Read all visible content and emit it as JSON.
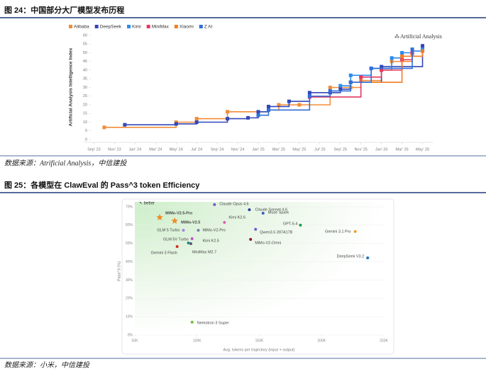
{
  "chart_data": [
    {
      "type": "line",
      "step": "post",
      "title": "图 24：中国部分大厂模型发布历程",
      "source": "数据来源：Atrificial Analysis，中信建投",
      "y_label": "Artificial Analysis Intelligence Index",
      "annotation": "Artificial Analysis",
      "xlim": [
        "2023-08",
        "2026-06"
      ],
      "xticks": [
        {
          "value": "2023-09",
          "label": "Sep' 23"
        },
        {
          "value": "2023-11",
          "label": "Nov' 23"
        },
        {
          "value": "2024-01",
          "label": "Jan' 24"
        },
        {
          "value": "2024-03",
          "label": "Mar' 24"
        },
        {
          "value": "2024-05",
          "label": "May' 24"
        },
        {
          "value": "2024-07",
          "label": "Jul' 24"
        },
        {
          "value": "2024-09",
          "label": "Sep' 24"
        },
        {
          "value": "2024-11",
          "label": "Nov' 24"
        },
        {
          "value": "2025-01",
          "label": "Jan' 25"
        },
        {
          "value": "2025-03",
          "label": "Mar' 25"
        },
        {
          "value": "2025-05",
          "label": "May' 25"
        },
        {
          "value": "2025-07",
          "label": "Jul' 25"
        },
        {
          "value": "2025-09",
          "label": "Sep' 25"
        },
        {
          "value": "2025-11",
          "label": "Nov' 25"
        },
        {
          "value": "2026-01",
          "label": "Jan' 26"
        },
        {
          "value": "2026-03",
          "label": "Mar' 26"
        },
        {
          "value": "2026-05",
          "label": "May' 26"
        }
      ],
      "ylim": [
        0,
        60
      ],
      "yticks": [
        0,
        5,
        10,
        15,
        20,
        25,
        30,
        35,
        40,
        45,
        50,
        55,
        60
      ],
      "series": [
        {
          "name": "Alibaba",
          "color": "#f28c38",
          "x": [
            "2023-10",
            "2024-05",
            "2024-07",
            "2024-10",
            "2025-02",
            "2025-03",
            "2025-05",
            "2025-08",
            "2025-10",
            "2025-11",
            "2026-01",
            "2026-02",
            "2026-04"
          ],
          "values": [
            7,
            10,
            12,
            16,
            17,
            20,
            20,
            30,
            30,
            34,
            40,
            45,
            49
          ]
        },
        {
          "name": "DeepSeek",
          "color": "#3347b8",
          "x": [
            "2023-12",
            "2024-05",
            "2024-07",
            "2024-10",
            "2024-12",
            "2025-01",
            "2025-02",
            "2025-04",
            "2025-06",
            "2025-08",
            "2025-09",
            "2025-10",
            "2026-01",
            "2026-05"
          ],
          "values": [
            8.5,
            9,
            10,
            12,
            12.5,
            16,
            19,
            22,
            27,
            27,
            29,
            33,
            42,
            54
          ]
        },
        {
          "name": "Kimi",
          "color": "#2a8cf0",
          "x": [
            "2025-09",
            "2025-10",
            "2025-12",
            "2026-02",
            "2026-03",
            "2026-04",
            "2026-05"
          ],
          "values": [
            31,
            37,
            41,
            47,
            50,
            51,
            52
          ]
        },
        {
          "name": "MiniMax",
          "color": "#e23a63",
          "x": [
            "2025-06",
            "2025-11",
            "2026-01",
            "2026-03",
            "2026-04"
          ],
          "values": [
            24.5,
            36,
            40,
            46,
            50
          ]
        },
        {
          "name": "Xiaomi",
          "color": "#f47c20",
          "x": [
            "2025-10",
            "2026-03",
            "2026-05"
          ],
          "values": [
            33,
            48,
            51
          ]
        },
        {
          "name": "Z AI",
          "color": "#2f6fd8",
          "x": [
            "2025-01",
            "2025-02",
            "2025-06",
            "2025-08",
            "2025-10",
            "2025-12",
            "2026-04"
          ],
          "values": [
            14,
            17,
            25,
            28,
            33,
            41,
            52
          ]
        }
      ]
    },
    {
      "type": "scatter",
      "title": "图 25：各模型在 ClawEval 的 Pass^3 token Efficiency",
      "source": "数据来源：小米，中信建投",
      "x_label": "Avg. tokens per trajectory (input + output)",
      "y_label": "Pass^3 (%)",
      "annotation": "↖ better",
      "grid": true,
      "xlim": [
        50000,
        250000
      ],
      "xticks": [
        {
          "value": 50000,
          "label": "50K"
        },
        {
          "value": 100000,
          "label": "100K"
        },
        {
          "value": 150000,
          "label": "150K"
        },
        {
          "value": 200000,
          "label": "200K"
        },
        {
          "value": 250000,
          "label": "250K"
        }
      ],
      "ylim": [
        0,
        70
      ],
      "yticks": [
        {
          "value": 0,
          "label": "0%"
        },
        {
          "value": 10,
          "label": "10%"
        },
        {
          "value": 20,
          "label": "20%"
        },
        {
          "value": 30,
          "label": "30%"
        },
        {
          "value": 40,
          "label": "40%"
        },
        {
          "value": 50,
          "label": "50%"
        },
        {
          "value": 60,
          "label": "60%"
        },
        {
          "value": 70,
          "label": "70%"
        }
      ],
      "points": [
        {
          "label": "Claude Opus 4.6",
          "x": 114000,
          "y": 71.2,
          "color": "#7b4fd0"
        },
        {
          "label": "Claude Sonnet 4.6",
          "x": 142000,
          "y": 68.4,
          "color": "#2a3f9a"
        },
        {
          "label": "Muse Spark",
          "x": 153000,
          "y": 66.5,
          "color": "#3b5fc0"
        },
        {
          "label": "Kimi K2.6",
          "x": 122000,
          "y": 61.5,
          "color": "#e060b0"
        },
        {
          "label": "GPT-5.4",
          "x": 183000,
          "y": 60,
          "color": "#1a9a50"
        },
        {
          "label": "Qwen3.5 397A17B",
          "x": 147000,
          "y": 57.7,
          "color": "#6a5cd8"
        },
        {
          "label": "MiMo-V2.5-Pro",
          "x": 70000,
          "y": 64.2,
          "color": "#f08a24",
          "marker": "star"
        },
        {
          "label": "MiMo-V2.5",
          "x": 82000,
          "y": 62.3,
          "color": "#f08a24",
          "marker": "star"
        },
        {
          "label": "GLM 5 Turbo",
          "x": 89000,
          "y": 57.2,
          "color": "#9b8ae0"
        },
        {
          "label": "MiMo-V2-Pro",
          "x": 101000,
          "y": 57.2,
          "color": "#7a7fb0"
        },
        {
          "label": "GLM 5V Turbo",
          "x": 96000,
          "y": 52.6,
          "color": "#c050d0"
        },
        {
          "label": "Kimi K2.5",
          "x": 93000,
          "y": 50.3,
          "color": "#2a8a8a"
        },
        {
          "label": "Gemini 3 Flash",
          "x": 84000,
          "y": 48.3,
          "color": "#d03020"
        },
        {
          "label": "MiniMax M2.7",
          "x": 95000,
          "y": 49.9,
          "color": "#555a70"
        },
        {
          "label": "MiMo-V2-Omni",
          "x": 143000,
          "y": 52.2,
          "color": "#8a1a30"
        },
        {
          "label": "Gemini 3.1 Pro",
          "x": 227000,
          "y": 56.5,
          "color": "#f0a030"
        },
        {
          "label": "DeepSeek V3.2",
          "x": 237000,
          "y": 42.1,
          "color": "#2070c0"
        },
        {
          "label": "Nemotron 3 Super",
          "x": 96000,
          "y": 7,
          "color": "#70c040"
        }
      ]
    }
  ]
}
